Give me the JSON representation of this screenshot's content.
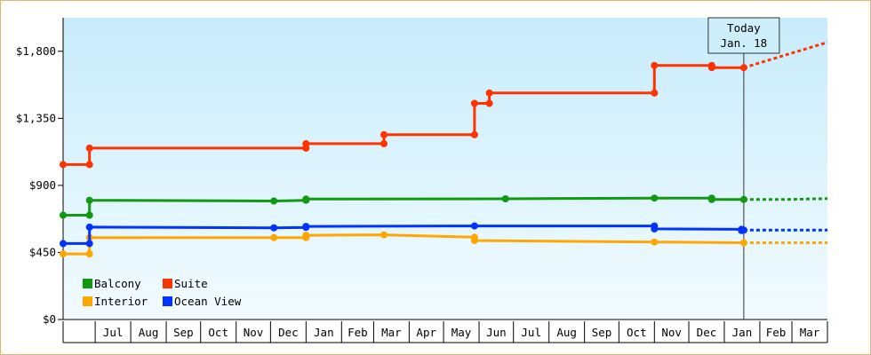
{
  "chart_data": {
    "type": "line",
    "style": "step",
    "xlabel": "",
    "ylabel": "",
    "x_domain": [
      "2017-06-03",
      "2019-04-01"
    ],
    "ylim": [
      0,
      2025
    ],
    "y_ticks": [
      {
        "value": 0,
        "label": "$0"
      },
      {
        "value": 450,
        "label": "$450"
      },
      {
        "value": 900,
        "label": "$900"
      },
      {
        "value": 1350,
        "label": "$1,350"
      },
      {
        "value": 1800,
        "label": "$1,800"
      }
    ],
    "x_ticks": [
      {
        "start": "2017-07-01",
        "label": "Jul"
      },
      {
        "start": "2017-08-01",
        "label": "Aug"
      },
      {
        "start": "2017-09-01",
        "label": "Sep"
      },
      {
        "start": "2017-10-01",
        "label": "Oct"
      },
      {
        "start": "2017-11-01",
        "label": "Nov"
      },
      {
        "start": "2017-12-01",
        "label": "Dec"
      },
      {
        "start": "2018-01-01",
        "label": "Jan"
      },
      {
        "start": "2018-02-01",
        "label": "Feb"
      },
      {
        "start": "2018-03-01",
        "label": "Mar"
      },
      {
        "start": "2018-04-01",
        "label": "Apr"
      },
      {
        "start": "2018-05-01",
        "label": "May"
      },
      {
        "start": "2018-06-01",
        "label": "Jun"
      },
      {
        "start": "2018-07-01",
        "label": "Jul"
      },
      {
        "start": "2018-08-01",
        "label": "Aug"
      },
      {
        "start": "2018-09-01",
        "label": "Sep"
      },
      {
        "start": "2018-10-01",
        "label": "Oct"
      },
      {
        "start": "2018-11-01",
        "label": "Nov"
      },
      {
        "start": "2018-12-01",
        "label": "Dec"
      },
      {
        "start": "2019-01-01",
        "label": "Jan"
      },
      {
        "start": "2019-02-01",
        "label": "Feb"
      },
      {
        "start": "2019-03-01",
        "label": "Mar"
      }
    ],
    "grid": false,
    "background": {
      "top": "#c8ecfb",
      "bottom": "#f2fbff"
    },
    "legend": {
      "placement": "bottom-left",
      "columns": 2
    },
    "today": {
      "date": "2019-01-18",
      "label_line1": "Today",
      "label_line2": "Jan. 18"
    },
    "series": [
      {
        "name": "Balcony",
        "color": "#119911",
        "points": [
          [
            "2017-06-03",
            700
          ],
          [
            "2017-06-26",
            700
          ],
          [
            "2017-06-26",
            800
          ],
          [
            "2017-12-04",
            795
          ],
          [
            "2018-01-01",
            800
          ],
          [
            "2018-01-01",
            808
          ],
          [
            "2018-06-24",
            810
          ],
          [
            "2018-11-01",
            815
          ],
          [
            "2018-12-21",
            815
          ],
          [
            "2018-12-21",
            805
          ],
          [
            "2019-01-18",
            805
          ]
        ],
        "projection": [
          [
            "2019-01-18",
            805
          ],
          [
            "2019-02-24",
            805
          ],
          [
            "2019-04-01",
            812
          ]
        ]
      },
      {
        "name": "Suite",
        "color": "#ff3300",
        "points": [
          [
            "2017-06-03",
            1040
          ],
          [
            "2017-06-26",
            1040
          ],
          [
            "2017-06-26",
            1150
          ],
          [
            "2018-01-01",
            1150
          ],
          [
            "2018-01-01",
            1180
          ],
          [
            "2018-03-10",
            1180
          ],
          [
            "2018-03-10",
            1240
          ],
          [
            "2018-05-28",
            1240
          ],
          [
            "2018-05-28",
            1450
          ],
          [
            "2018-06-10",
            1450
          ],
          [
            "2018-06-10",
            1520
          ],
          [
            "2018-11-01",
            1520
          ],
          [
            "2018-11-01",
            1705
          ],
          [
            "2018-12-21",
            1705
          ],
          [
            "2018-12-21",
            1690
          ],
          [
            "2019-01-18",
            1690
          ]
        ],
        "projection": [
          [
            "2019-01-18",
            1690
          ],
          [
            "2019-04-01",
            1860
          ]
        ]
      },
      {
        "name": "Interior",
        "color": "#ffa600",
        "points": [
          [
            "2017-06-03",
            440
          ],
          [
            "2017-06-26",
            440
          ],
          [
            "2017-06-26",
            550
          ],
          [
            "2017-12-04",
            550
          ],
          [
            "2018-01-01",
            550
          ],
          [
            "2018-01-01",
            565
          ],
          [
            "2018-03-10",
            568
          ],
          [
            "2018-05-28",
            552
          ],
          [
            "2018-05-28",
            530
          ],
          [
            "2018-11-01",
            520
          ],
          [
            "2019-01-18",
            515
          ]
        ],
        "projection": [
          [
            "2019-01-18",
            515
          ],
          [
            "2019-04-01",
            515
          ]
        ]
      },
      {
        "name": "Ocean View",
        "color": "#0033ff",
        "points": [
          [
            "2017-06-03",
            510
          ],
          [
            "2017-06-26",
            510
          ],
          [
            "2017-06-26",
            620
          ],
          [
            "2017-12-04",
            615
          ],
          [
            "2018-01-01",
            618
          ],
          [
            "2018-01-01",
            625
          ],
          [
            "2018-05-28",
            628
          ],
          [
            "2018-11-01",
            628
          ],
          [
            "2018-11-01",
            608
          ],
          [
            "2019-01-16",
            605
          ],
          [
            "2019-01-16",
            597
          ],
          [
            "2019-01-18",
            600
          ]
        ],
        "projection": [
          [
            "2019-01-18",
            600
          ],
          [
            "2019-04-01",
            600
          ]
        ]
      }
    ]
  }
}
